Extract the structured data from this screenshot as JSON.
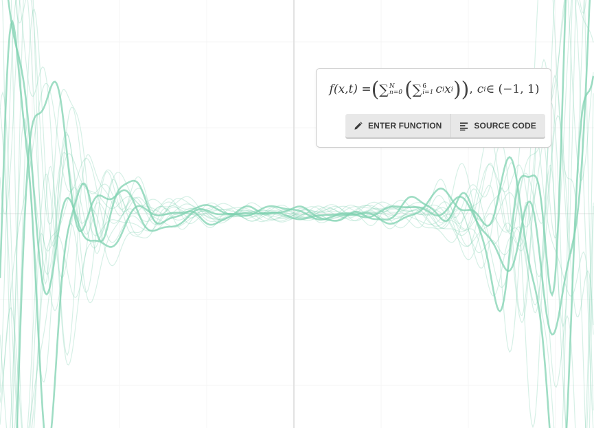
{
  "formula": {
    "lhs": "f(x,t) = ",
    "sum_outer_top": "N",
    "sum_outer_bottom": "n=0",
    "sum_inner_top": "6",
    "sum_inner_bottom": "i=1",
    "term_c": "c",
    "term_c_sub": "i",
    "term_x": "x",
    "term_x_sup": "i",
    "constraint": "c",
    "constraint_sub": "i",
    "constraint_rhs": " ∈ (−1, 1)"
  },
  "buttons": {
    "enter_function": "ENTER FUNCTION",
    "source_code": "SOURCE CODE"
  },
  "icons": {
    "enter_function": "pencil-icon",
    "source_code": "align-left-icon"
  },
  "colors": {
    "curve": "#7fd1b0",
    "axis": "#e2e2e2",
    "grid": "#f4f4f4",
    "button_bg": "#e8e8e8",
    "button_text": "#3a3a3a"
  }
}
